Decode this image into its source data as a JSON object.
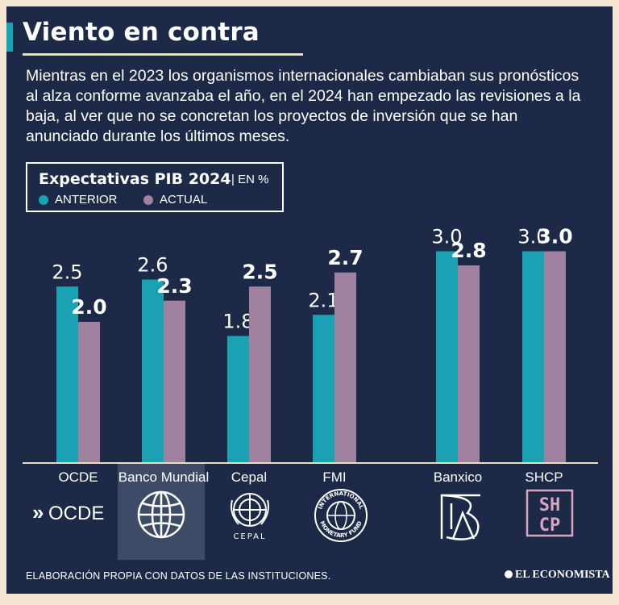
{
  "header": {
    "title": "Viento en contra",
    "intro": "Mientras en el 2023 los organismos internacionales cambiaban sus pronósticos al alza conforme avanzaba el año, en el 2024 han empezado las revisiones a la baja, al ver que no se concretan los proyectos de inversión que se han anunciado durante los últimos meses."
  },
  "legend": {
    "title": "Expectativas PIB 2024",
    "unit": "| EN %",
    "items": [
      {
        "label": "ANTERIOR",
        "color": "#1ba1b4"
      },
      {
        "label": "ACTUAL",
        "color": "#a0819f"
      }
    ]
  },
  "chart_data": {
    "type": "bar",
    "title": "Expectativas PIB 2024",
    "ylabel": "EN %",
    "xlabel": "",
    "ylim": [
      0,
      3.2
    ],
    "grid": false,
    "legend_position": "top-left",
    "categories": [
      "OCDE",
      "Banco Mundial",
      "Cepal",
      "FMI",
      "Banxico",
      "SHCP"
    ],
    "series": [
      {
        "name": "ANTERIOR",
        "color": "#1ba1b4",
        "values": [
          2.5,
          2.6,
          1.8,
          2.1,
          3.0,
          3.0
        ],
        "labels": [
          "2.5",
          "2.6",
          "1.8",
          "2.1",
          "3.0",
          "3.0"
        ]
      },
      {
        "name": "ACTUAL",
        "color": "#a0819f",
        "values": [
          2.0,
          2.3,
          2.5,
          2.7,
          2.8,
          3.0
        ],
        "labels": [
          "2.0",
          "2.3",
          "2.5",
          "2.7",
          "2.8",
          "3.0"
        ]
      }
    ]
  },
  "logos": {
    "ocde": "OCDE",
    "shcp_top": "SH",
    "shcp_bottom": "CP",
    "cepal": "CEPAL",
    "imf_top": "INTERNATIONAL",
    "imf_bottom": "MONETARY FUND"
  },
  "footer": {
    "source": "ELABORACIÓN PROPIA CON DATOS DE LAS INSTITUCIONES.",
    "brand": "EL ECONOMISTA"
  }
}
